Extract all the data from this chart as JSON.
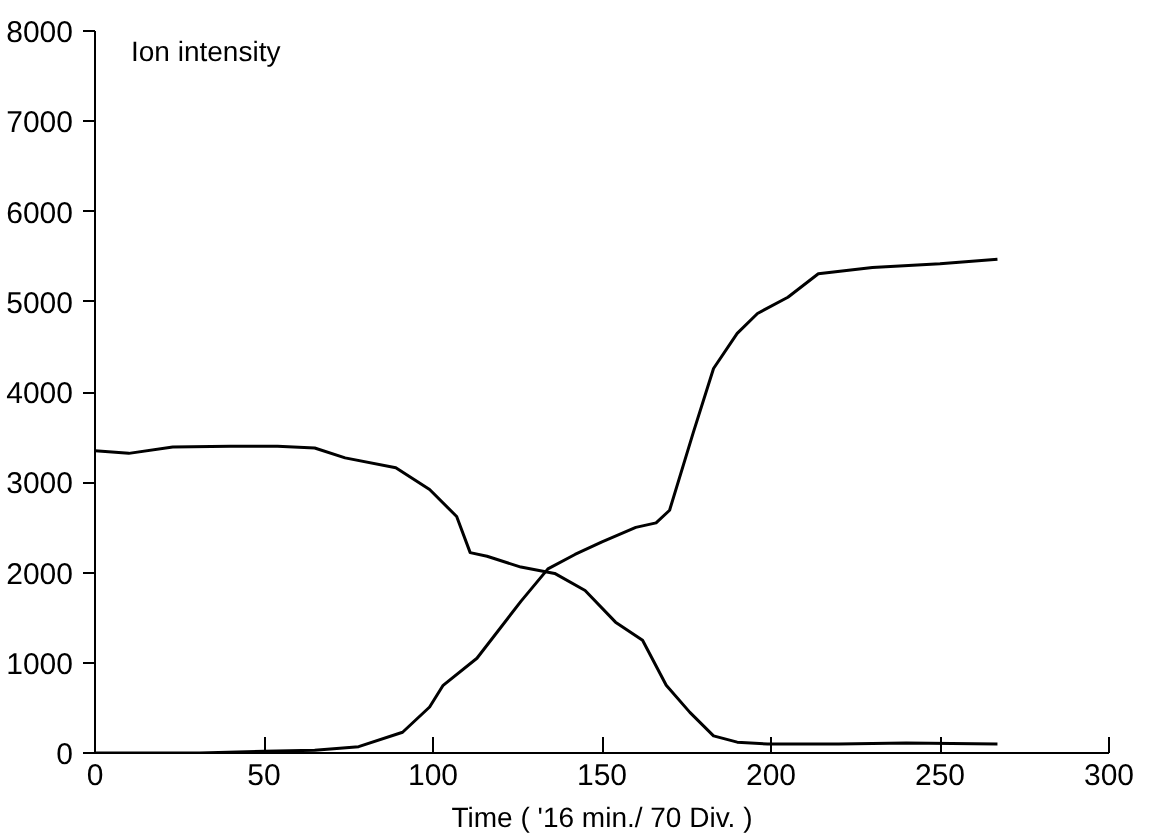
{
  "chart_data": {
    "type": "line",
    "ylabel": "Ion intensity",
    "xlabel": "Time ( '16 min./ 70 Div. )",
    "xlim": [
      0,
      300
    ],
    "xticks": [
      0,
      50,
      100,
      150,
      200,
      250,
      300
    ],
    "ylim": [
      0,
      8000
    ],
    "yticks": [
      0,
      1000,
      2000,
      3000,
      4000,
      5000,
      6000,
      7000,
      8000
    ],
    "grid": false,
    "series": [
      {
        "color": "#000000",
        "x": [
          0,
          10,
          23,
          40,
          54,
          65,
          74,
          89,
          99,
          107,
          111,
          116,
          126,
          136,
          145,
          154,
          162,
          169,
          176,
          183,
          190,
          199,
          220,
          240,
          267
        ],
        "values": [
          3350,
          3320,
          3390,
          3400,
          3400,
          3380,
          3270,
          3160,
          2920,
          2620,
          2220,
          2180,
          2060,
          1990,
          1800,
          1450,
          1250,
          750,
          450,
          190,
          120,
          100,
          100,
          110,
          100
        ]
      },
      {
        "color": "#000000",
        "x": [
          0,
          31,
          50,
          65,
          78,
          91,
          99,
          103,
          113,
          126,
          134,
          142,
          150,
          160,
          166,
          170,
          177,
          183,
          190,
          196,
          205,
          214,
          230,
          250,
          267
        ],
        "values": [
          0,
          0,
          20,
          30,
          70,
          230,
          510,
          750,
          1050,
          1680,
          2040,
          2200,
          2340,
          2500,
          2550,
          2690,
          3550,
          4260,
          4650,
          4870,
          5050,
          5310,
          5380,
          5420,
          5470
        ]
      }
    ]
  }
}
